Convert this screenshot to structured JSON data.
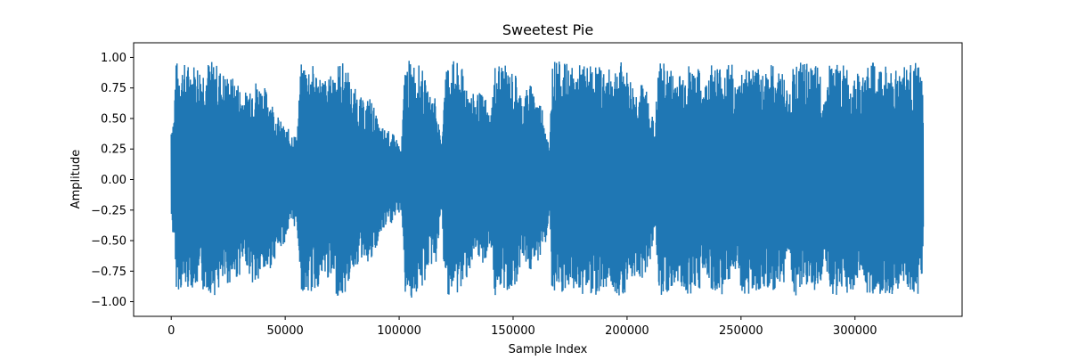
{
  "chart_data": {
    "type": "line",
    "title": "Sweetest Pie",
    "xlabel": "Sample Index",
    "ylabel": "Amplitude",
    "xlim": [
      -16500,
      347000
    ],
    "ylim": [
      -1.12,
      1.12
    ],
    "x_ticks": [
      {
        "value": 0,
        "label": "0"
      },
      {
        "value": 50000,
        "label": "50000"
      },
      {
        "value": 100000,
        "label": "100000"
      },
      {
        "value": 150000,
        "label": "150000"
      },
      {
        "value": 200000,
        "label": "200000"
      },
      {
        "value": 250000,
        "label": "250000"
      },
      {
        "value": 300000,
        "label": "300000"
      }
    ],
    "y_ticks": [
      {
        "value": 1.0,
        "label": "1.00"
      },
      {
        "value": 0.75,
        "label": "0.75"
      },
      {
        "value": 0.5,
        "label": "0.50"
      },
      {
        "value": 0.25,
        "label": "0.25"
      },
      {
        "value": 0.0,
        "label": "0.00"
      },
      {
        "value": -0.25,
        "label": "−0.25"
      },
      {
        "value": -0.5,
        "label": "−0.50"
      },
      {
        "value": -0.75,
        "label": "−0.75"
      },
      {
        "value": -1.0,
        "label": "−1.00"
      }
    ],
    "grid": false,
    "legend": "none",
    "colors": {
      "line": "#1f77b4"
    },
    "series": [
      {
        "x_start": 0,
        "x_end": 330000,
        "envelope": {
          "x": [
            0,
            500,
            1300,
            1800,
            2500,
            5000,
            8000,
            11000,
            13000,
            16000,
            19000,
            22000,
            26000,
            29000,
            31000,
            33000,
            35000,
            37000,
            40000,
            43000,
            46000,
            49000,
            51000,
            53000,
            55000,
            57000,
            58000,
            60000,
            63000,
            66000,
            69000,
            72000,
            75000,
            77000,
            79000,
            82000,
            85000,
            87000,
            89000,
            91000,
            94000,
            97000,
            99000,
            101000,
            102500,
            104000,
            107000,
            110000,
            113000,
            116000,
            118500,
            120000,
            123000,
            126000,
            128000,
            130000,
            132000,
            135000,
            138000,
            140000,
            142000,
            145000,
            148000,
            151000,
            154000,
            157000,
            160000,
            163000,
            165000,
            166000,
            167000,
            168000,
            171000,
            174000,
            177000,
            180000,
            183000,
            186000,
            189000,
            192000,
            195000,
            198000,
            201000,
            204000,
            207000,
            210000,
            212000,
            214000,
            217000,
            220000,
            223000,
            226000,
            229000,
            232000,
            234000,
            235500,
            237000,
            240000,
            243000,
            246000,
            248000,
            250000,
            253000,
            256000,
            259000,
            262000,
            265000,
            268000,
            271000,
            273000,
            275000,
            278000,
            281000,
            284000,
            287000,
            289000,
            291000,
            294000,
            297000,
            300000,
            303000,
            306000,
            309000,
            312000,
            315000,
            318000,
            321000,
            324000,
            327000,
            329000,
            330000
          ],
          "max": [
            0.48,
            0.52,
            0.55,
            0.95,
            0.97,
            0.96,
            0.95,
            0.97,
            0.94,
            0.98,
            0.97,
            0.9,
            0.85,
            0.82,
            0.75,
            0.72,
            0.85,
            0.83,
            0.78,
            0.72,
            0.55,
            0.45,
            0.42,
            0.4,
            0.35,
            0.95,
            0.98,
            0.97,
            0.93,
            0.85,
            0.82,
            0.96,
            0.97,
            0.94,
            0.78,
            0.72,
            0.62,
            0.7,
            0.6,
            0.45,
            0.42,
            0.38,
            0.34,
            0.25,
            0.95,
            0.98,
            0.97,
            0.92,
            0.7,
            0.72,
            0.25,
            0.96,
            0.99,
            0.95,
            0.9,
            0.82,
            0.7,
            0.72,
            0.68,
            0.5,
            0.95,
            0.97,
            0.9,
            0.88,
            0.68,
            0.8,
            0.72,
            0.6,
            0.4,
            0.2,
            1.0,
            0.99,
            0.96,
            0.95,
            0.9,
            0.96,
            0.93,
            0.96,
            0.92,
            0.9,
            0.95,
            0.97,
            0.85,
            0.75,
            0.8,
            0.68,
            0.42,
            0.98,
            0.95,
            0.9,
            0.88,
            0.96,
            0.93,
            0.9,
            0.75,
            0.95,
            0.96,
            0.95,
            0.94,
            0.96,
            0.75,
            0.93,
            0.95,
            0.92,
            0.9,
            0.96,
            0.93,
            0.9,
            0.7,
            0.95,
            0.97,
            0.96,
            0.92,
            0.94,
            0.7,
            0.98,
            0.97,
            0.95,
            0.92,
            0.9,
            0.82,
            0.98,
            0.95,
            0.93,
            0.95,
            0.92,
            0.97,
            0.94,
            0.96,
            0.9,
            0.68
          ],
          "min": [
            -0.35,
            -0.45,
            -0.5,
            -0.88,
            -0.9,
            -0.92,
            -0.88,
            -0.9,
            -0.93,
            -0.92,
            -0.95,
            -0.9,
            -0.85,
            -0.82,
            -0.75,
            -0.7,
            -0.85,
            -0.9,
            -0.8,
            -0.75,
            -0.62,
            -0.55,
            -0.45,
            -0.4,
            -0.38,
            -0.9,
            -0.97,
            -0.95,
            -0.92,
            -0.85,
            -0.82,
            -0.95,
            -0.97,
            -0.93,
            -0.75,
            -0.7,
            -0.63,
            -0.72,
            -0.65,
            -0.5,
            -0.4,
            -0.36,
            -0.3,
            -0.25,
            -0.95,
            -0.99,
            -0.96,
            -0.92,
            -0.72,
            -0.7,
            -0.3,
            -0.93,
            -0.96,
            -0.95,
            -0.9,
            -0.78,
            -0.72,
            -0.7,
            -0.68,
            -0.55,
            -0.97,
            -0.95,
            -0.92,
            -0.88,
            -0.62,
            -0.78,
            -0.7,
            -0.58,
            -0.48,
            -0.2,
            -0.98,
            -1.02,
            -0.96,
            -0.95,
            -0.92,
            -0.95,
            -0.93,
            -0.95,
            -0.9,
            -0.88,
            -0.94,
            -0.96,
            -0.85,
            -0.78,
            -0.82,
            -0.68,
            -0.4,
            -0.96,
            -0.95,
            -0.9,
            -0.88,
            -0.95,
            -0.93,
            -0.9,
            -0.72,
            -0.94,
            -0.95,
            -0.95,
            -0.93,
            -0.96,
            -0.72,
            -0.95,
            -0.95,
            -0.92,
            -0.9,
            -0.97,
            -0.93,
            -0.9,
            -0.68,
            -0.95,
            -0.96,
            -0.95,
            -0.92,
            -0.94,
            -0.7,
            -0.98,
            -0.96,
            -0.95,
            -0.93,
            -0.9,
            -0.8,
            -0.97,
            -0.95,
            -0.93,
            -0.95,
            -0.92,
            -0.98,
            -0.94,
            -0.96,
            -0.92,
            -0.5
          ]
        }
      }
    ]
  }
}
